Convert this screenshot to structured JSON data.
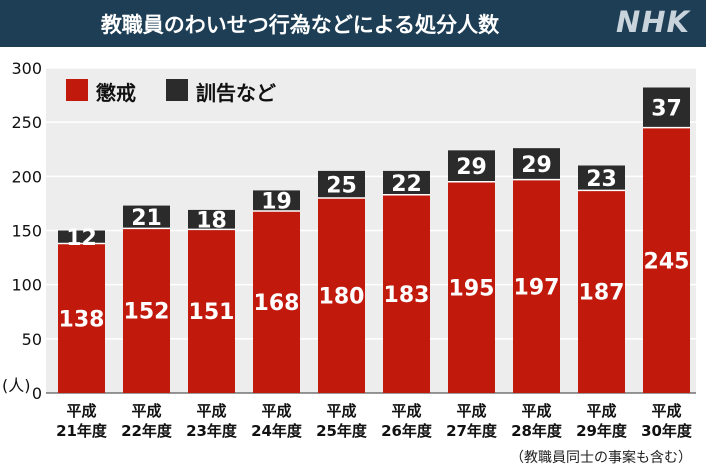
{
  "header": {
    "title": "教職員のわいせつ行為などによる処分人数",
    "brand": "NHK"
  },
  "legend": [
    {
      "label": "懲戒",
      "color": "#c1190c"
    },
    {
      "label": "訓告など",
      "color": "#2b2b2b"
    }
  ],
  "footnote": "（教職員同士の事案も含む）",
  "chart_data": {
    "type": "bar",
    "stacked": true,
    "y_unit_label": "(人)",
    "ylim": [
      0,
      300
    ],
    "yticks": [
      0,
      50,
      100,
      150,
      200,
      250,
      300
    ],
    "grid": true,
    "categories": [
      [
        "平成",
        "21年度"
      ],
      [
        "平成",
        "22年度"
      ],
      [
        "平成",
        "23年度"
      ],
      [
        "平成",
        "24年度"
      ],
      [
        "平成",
        "25年度"
      ],
      [
        "平成",
        "26年度"
      ],
      [
        "平成",
        "27年度"
      ],
      [
        "平成",
        "28年度"
      ],
      [
        "平成",
        "29年度"
      ],
      [
        "平成",
        "30年度"
      ]
    ],
    "series": [
      {
        "name": "懲戒",
        "color": "#c1190c",
        "values": [
          138,
          152,
          151,
          168,
          180,
          183,
          195,
          197,
          187,
          245
        ]
      },
      {
        "name": "訓告など",
        "color": "#2b2b2b",
        "values": [
          12,
          21,
          18,
          19,
          25,
          22,
          29,
          29,
          23,
          37
        ]
      }
    ]
  }
}
